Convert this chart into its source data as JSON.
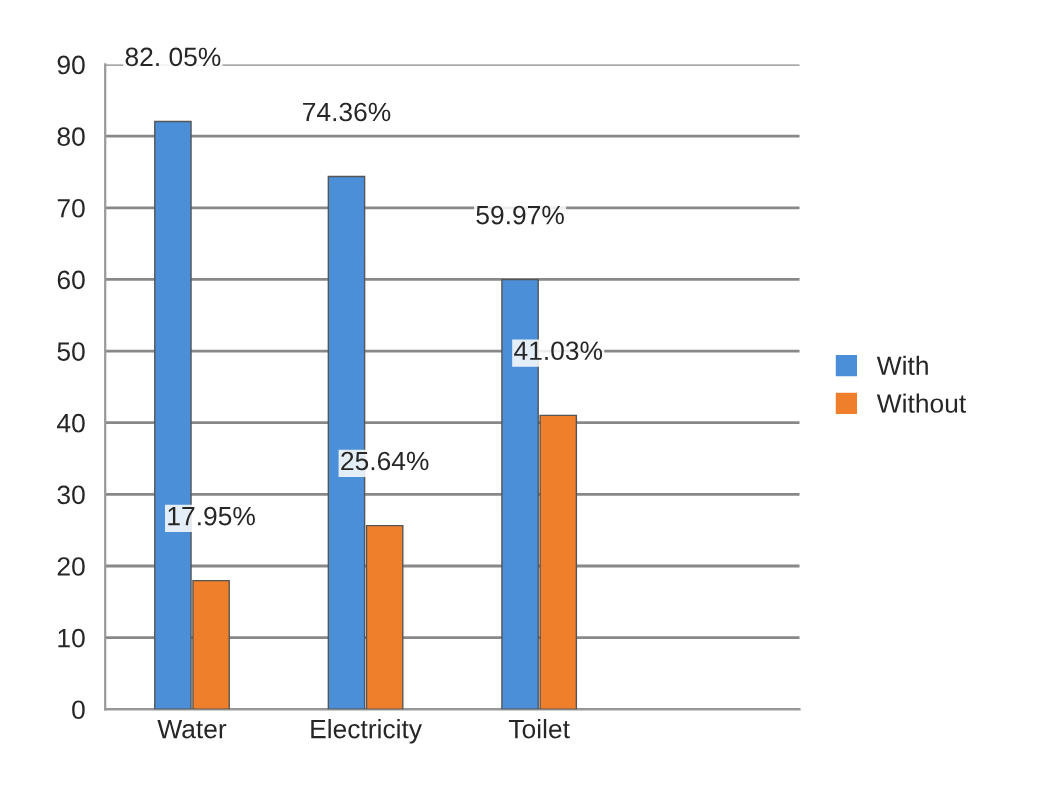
{
  "chart_data": {
    "type": "bar",
    "categories": [
      "Water",
      "Electricity",
      "Toilet",
      null
    ],
    "series": [
      {
        "name": "With",
        "color": "#4a8fd8",
        "values": [
          82.05,
          74.36,
          59.97,
          null
        ],
        "value_labels": [
          "82. 05%",
          "74.36%",
          "59.97%",
          null
        ]
      },
      {
        "name": "Without",
        "color": "#f07f2c",
        "values": [
          17.95,
          25.64,
          41.03,
          null
        ],
        "value_labels": [
          "17.95%",
          "25.64%",
          "41.03%",
          null
        ]
      }
    ],
    "ylim": [
      0,
      90
    ],
    "yticks": [
      0,
      10,
      20,
      30,
      40,
      50,
      60,
      70,
      80,
      90
    ],
    "grid": "y",
    "legend": "right"
  }
}
